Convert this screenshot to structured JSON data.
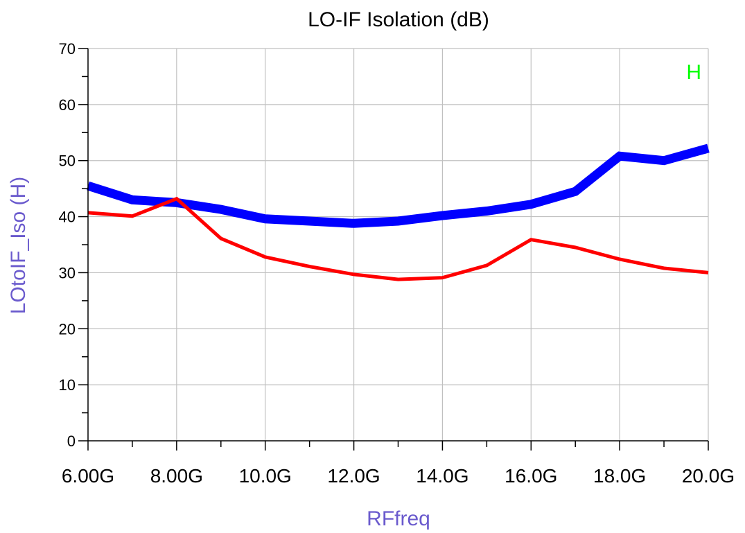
{
  "chart_data": {
    "type": "line",
    "title": "LO-IF Isolation (dB)",
    "xlabel": "RFfreq",
    "ylabel": "LOtoIF_Iso (H)",
    "marker_label": "H",
    "xlim": [
      6,
      20
    ],
    "ylim": [
      0,
      70
    ],
    "x_unit_suffix": "G",
    "x_ticks": [
      6,
      8,
      10,
      12,
      14,
      16,
      18,
      20
    ],
    "x_tick_labels": [
      "6.00G",
      "8.00G",
      "10.0G",
      "12.0G",
      "14.0G",
      "16.0G",
      "18.0G",
      "20.0G"
    ],
    "x_minor_ticks": [
      7,
      9,
      11,
      13,
      15,
      17,
      19
    ],
    "y_ticks": [
      0,
      10,
      20,
      30,
      40,
      50,
      60,
      70
    ],
    "y_tick_labels": [
      "0",
      "10",
      "20",
      "30",
      "40",
      "50",
      "60",
      "70"
    ],
    "y_minor_ticks": [
      5,
      15,
      25,
      35,
      45,
      55,
      65
    ],
    "grid": true,
    "x": [
      6,
      7,
      8,
      9,
      10,
      11,
      12,
      13,
      14,
      15,
      16,
      17,
      18,
      19,
      20
    ],
    "series": [
      {
        "color": "#0000ff",
        "width": 13,
        "values": [
          45.5,
          43.0,
          42.5,
          41.3,
          39.6,
          39.2,
          38.8,
          39.2,
          40.2,
          41.0,
          42.2,
          44.5,
          50.8,
          50.0,
          52.2
        ]
      },
      {
        "color": "#ff0000",
        "width": 5,
        "values": [
          40.7,
          40.1,
          43.2,
          36.1,
          32.8,
          31.1,
          29.7,
          28.8,
          29.1,
          31.3,
          35.9,
          34.5,
          32.4,
          30.8,
          30.0
        ]
      }
    ],
    "colors": {
      "marker": "#00ff00",
      "axis_label": "#6a5acd",
      "grid": "#c0c0c0"
    }
  }
}
